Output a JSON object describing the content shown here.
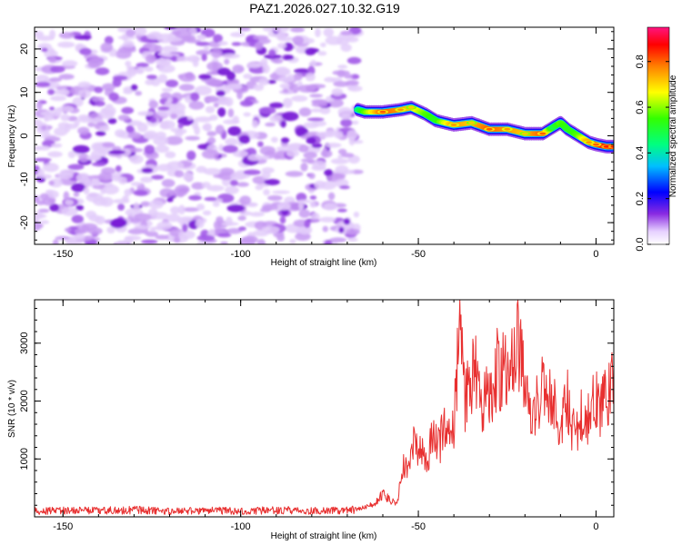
{
  "title": "PAZ1.2026.027.10.32.G19",
  "colors": {
    "snr_line": "#e83030",
    "noise": "#8a2be2",
    "frame": "#000000"
  },
  "colorbar": {
    "label": "Normalized spectral amplitude",
    "range": [
      0,
      0.95
    ],
    "ticks": [
      0.0,
      0.2,
      0.4,
      0.6,
      0.8
    ],
    "tick_labels": [
      "0.0",
      "0.2",
      "0.4",
      "0.6",
      "0.8"
    ]
  },
  "chart_data": [
    {
      "type": "heatmap",
      "name": "spectrogram",
      "xlabel": "Height of straight line (km)",
      "ylabel": "Frequency (Hz)",
      "xlim": [
        -158,
        5
      ],
      "ylim": [
        -25,
        25
      ],
      "xticks": [
        -150,
        -100,
        -50,
        0
      ],
      "xtick_labels": [
        "-150",
        "-100",
        "-50",
        "0"
      ],
      "yticks": [
        -20,
        -10,
        0,
        10,
        20
      ],
      "ytick_labels": [
        "-20",
        "-10",
        "0",
        "10",
        "20"
      ],
      "noise_region_x": [
        -158,
        -67
      ],
      "signal_track": {
        "x": [
          -67,
          -65,
          -60,
          -55,
          -52,
          -48,
          -45,
          -40,
          -35,
          -30,
          -25,
          -20,
          -15,
          -12,
          -10,
          -8,
          -5,
          -2,
          0,
          3,
          5
        ],
        "y": [
          6,
          5.5,
          5.5,
          6,
          6.5,
          5,
          3.5,
          2.5,
          3,
          1.5,
          1.5,
          0.5,
          0.5,
          2,
          3,
          1.5,
          0,
          -1.5,
          -2,
          -2.5,
          -2.5
        ],
        "peak_amplitude": [
          0.45,
          0.6,
          0.85,
          0.8,
          0.75,
          0.6,
          0.55,
          0.8,
          0.75,
          0.85,
          0.8,
          0.75,
          0.85,
          0.5,
          0.6,
          0.55,
          0.6,
          0.8,
          0.85,
          0.9,
          0.9
        ]
      }
    },
    {
      "type": "line",
      "name": "snr",
      "xlabel": "Height of straight line (km)",
      "ylabel": "SNR (10 * v/v)",
      "xlim": [
        -158,
        5
      ],
      "ylim": [
        0,
        3750
      ],
      "xticks": [
        -150,
        -100,
        -50,
        0
      ],
      "xtick_labels": [
        "-150",
        "-100",
        "-50",
        "0"
      ],
      "yticks": [
        1000,
        2000,
        3000
      ],
      "ytick_labels": [
        "1000",
        "2000",
        "3000"
      ],
      "series": [
        {
          "name": "SNR",
          "x": [
            -158,
            -150,
            -140,
            -130,
            -120,
            -110,
            -100,
            -90,
            -80,
            -70,
            -65,
            -62,
            -60,
            -58,
            -56,
            -55,
            -54,
            -53,
            -52,
            -51,
            -50,
            -49,
            -48,
            -47,
            -46,
            -45,
            -44,
            -43,
            -42,
            -41,
            -40,
            -39,
            -38.5,
            -38,
            -37.5,
            -37,
            -36,
            -35,
            -34,
            -33,
            -32,
            -31,
            -30,
            -29,
            -28,
            -27,
            -26,
            -25,
            -24,
            -23,
            -22,
            -21,
            -20,
            -19,
            -18,
            -17,
            -16,
            -15,
            -14,
            -13,
            -12,
            -11,
            -10,
            -9,
            -8,
            -7,
            -6,
            -5,
            -4,
            -3,
            -2,
            -1,
            0,
            1,
            2,
            3,
            4,
            5
          ],
          "y": [
            100,
            110,
            105,
            120,
            95,
            110,
            100,
            115,
            105,
            110,
            160,
            250,
            400,
            300,
            200,
            600,
            900,
            700,
            1100,
            1300,
            1000,
            1200,
            900,
            1100,
            1500,
            1300,
            1200,
            1600,
            1400,
            1300,
            1600,
            2600,
            3000,
            3750,
            2600,
            2000,
            2200,
            2400,
            2600,
            2000,
            1800,
            2300,
            2100,
            1800,
            2600,
            2400,
            2700,
            2300,
            2600,
            2800,
            3000,
            2600,
            2500,
            2200,
            1500,
            2000,
            1800,
            2300,
            2000,
            2200,
            1900,
            1800,
            1500,
            1800,
            2000,
            1600,
            1400,
            1600,
            1800,
            1500,
            1700,
            1900,
            2000,
            1800,
            2200,
            2000,
            2400,
            2600
          ]
        }
      ]
    }
  ]
}
